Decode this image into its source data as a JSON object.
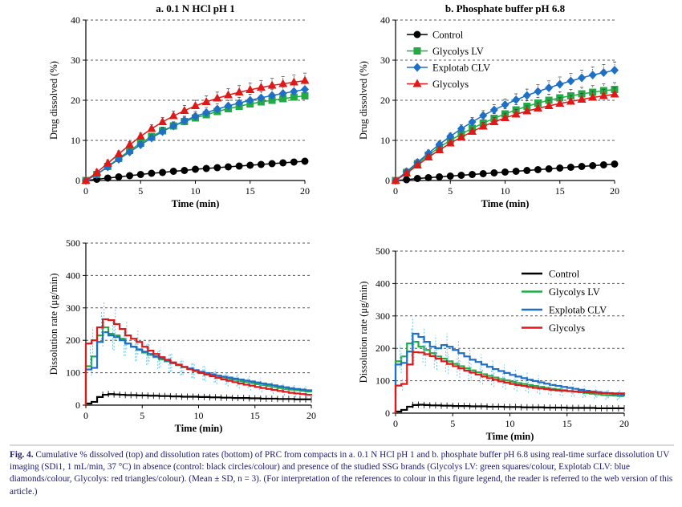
{
  "colors": {
    "control": "#000000",
    "glv": "#22aa44",
    "clv": "#1f6fc6",
    "gly": "#e01818",
    "err": "#6ec6e6"
  },
  "caption": {
    "label": "Fig. 4.",
    "text": "Cumulative % dissolved (top) and dissolution rates (bottom) of PRC from compacts in a. 0.1 N HCl pH 1 and b. phosphate buffer pH 6.8 using real-time surface dissolution UV imaging (SDi1, 1 mL/min, 37 °C) in absence (control: black circles/colour) and presence of the studied SSG brands (Glycolys LV: green squares/colour, Explotab CLV: blue diamonds/colour, Glycolys: red triangles/colour). (Mean ± SD, n = 3). (For interpretation of the references to colour in this figure legend, the reader is referred to the web version of this article.)"
  },
  "chart_data": [
    {
      "type": "line",
      "id": "a",
      "title": "a. 0.1 N HCl pH 1",
      "xlabel": "Time (min)",
      "ylabel": "Drug dissolved (%)",
      "xlim": [
        0,
        20
      ],
      "ylim": [
        0,
        40
      ],
      "xticks": [
        0,
        5,
        10,
        15,
        20
      ],
      "yticks": [
        0,
        10,
        20,
        30,
        40
      ],
      "x": [
        0,
        1,
        2,
        3,
        4,
        5,
        6,
        7,
        8,
        9,
        10,
        11,
        12,
        13,
        14,
        15,
        16,
        17,
        18,
        19,
        20
      ],
      "series": [
        {
          "name": "Control",
          "marker": "circle",
          "color": "#000000",
          "values": [
            0,
            0.3,
            0.6,
            0.9,
            1.2,
            1.5,
            1.8,
            2.0,
            2.3,
            2.5,
            2.8,
            3.0,
            3.2,
            3.4,
            3.6,
            3.8,
            4.0,
            4.2,
            4.4,
            4.6,
            4.8
          ]
        },
        {
          "name": "Glycolys LV",
          "marker": "square",
          "color": "#22aa44",
          "values": [
            0,
            1.5,
            3.5,
            5.5,
            7.5,
            9.3,
            11.0,
            12.4,
            13.6,
            14.7,
            15.6,
            16.4,
            17.2,
            17.9,
            18.5,
            19.1,
            19.6,
            20.0,
            20.4,
            20.8,
            21.1
          ]
        },
        {
          "name": "Explotab CLV",
          "marker": "diamond",
          "color": "#1f6fc6",
          "values": [
            0,
            1.5,
            3.4,
            5.3,
            7.1,
            8.9,
            10.6,
            12.2,
            13.6,
            14.9,
            16.0,
            16.9,
            17.8,
            18.6,
            19.3,
            20.0,
            20.6,
            21.2,
            21.7,
            22.2,
            22.7
          ]
        },
        {
          "name": "Glycolys",
          "marker": "triangle",
          "color": "#e01818",
          "values": [
            0,
            2.0,
            4.3,
            6.6,
            8.9,
            11.0,
            12.9,
            14.6,
            16.1,
            17.4,
            18.6,
            19.6,
            20.5,
            21.3,
            22.0,
            22.6,
            23.2,
            23.7,
            24.1,
            24.5,
            24.9
          ]
        }
      ]
    },
    {
      "type": "line",
      "id": "b",
      "title": "b. Phosphate buffer pH 6.8",
      "xlabel": "Time (min)",
      "ylabel": "Drug dissolved (%)",
      "xlim": [
        0,
        20
      ],
      "ylim": [
        0,
        40
      ],
      "xticks": [
        0,
        5,
        10,
        15,
        20
      ],
      "yticks": [
        0,
        10,
        20,
        30,
        40
      ],
      "legend": "top-left",
      "x": [
        0,
        1,
        2,
        3,
        4,
        5,
        6,
        7,
        8,
        9,
        10,
        11,
        12,
        13,
        14,
        15,
        16,
        17,
        18,
        19,
        20
      ],
      "series": [
        {
          "name": "Control",
          "marker": "circle",
          "color": "#000000",
          "values": [
            0,
            0.2,
            0.5,
            0.7,
            0.9,
            1.1,
            1.3,
            1.5,
            1.7,
            1.9,
            2.1,
            2.3,
            2.5,
            2.7,
            2.9,
            3.1,
            3.3,
            3.5,
            3.7,
            3.9,
            4.1
          ]
        },
        {
          "name": "Glycolys LV",
          "marker": "square",
          "color": "#22aa44",
          "values": [
            0,
            2.0,
            4.2,
            6.3,
            8.3,
            10.0,
            11.6,
            13.0,
            14.3,
            15.5,
            16.6,
            17.6,
            18.5,
            19.3,
            20.0,
            20.6,
            21.1,
            21.6,
            22.0,
            22.4,
            22.7
          ]
        },
        {
          "name": "Explotab CLV",
          "marker": "diamond",
          "color": "#1f6fc6",
          "values": [
            0,
            2.2,
            4.5,
            6.8,
            9.0,
            11.0,
            12.9,
            14.6,
            16.2,
            17.6,
            18.9,
            20.1,
            21.2,
            22.2,
            23.1,
            24.0,
            24.8,
            25.6,
            26.3,
            26.9,
            27.5
          ]
        },
        {
          "name": "Glycolys",
          "marker": "triangle",
          "color": "#e01818",
          "values": [
            0,
            1.8,
            3.8,
            5.8,
            7.6,
            9.3,
            10.8,
            12.2,
            13.5,
            14.6,
            15.6,
            16.5,
            17.3,
            18.0,
            18.6,
            19.2,
            19.7,
            20.2,
            20.7,
            21.1,
            21.5
          ]
        }
      ]
    },
    {
      "type": "line",
      "id": "c",
      "step": true,
      "xlabel": "Time (min)",
      "ylabel": "Dissolution rate (μg/min)",
      "xlim": [
        0,
        20
      ],
      "ylim": [
        0,
        500
      ],
      "xticks": [
        0,
        5,
        10,
        15,
        20
      ],
      "yticks": [
        0,
        100,
        200,
        300,
        400,
        500
      ],
      "x": [
        0,
        0.5,
        1,
        1.5,
        2,
        2.5,
        3,
        3.5,
        4,
        4.5,
        5,
        5.5,
        6,
        6.5,
        7,
        7.5,
        8,
        8.5,
        9,
        9.5,
        10,
        10.5,
        11,
        11.5,
        12,
        12.5,
        13,
        13.5,
        14,
        14.5,
        15,
        15.5,
        16,
        16.5,
        17,
        17.5,
        18,
        18.5,
        19,
        19.5,
        20
      ],
      "series": [
        {
          "name": "Control",
          "color": "#000000",
          "values": [
            5,
            10,
            25,
            32,
            34,
            33,
            32,
            31,
            31,
            30,
            30,
            29,
            29,
            28,
            28,
            27,
            27,
            26,
            26,
            26,
            25,
            25,
            24,
            24,
            23,
            23,
            22,
            22,
            22,
            21,
            21,
            20,
            20,
            20,
            19,
            19,
            19,
            18,
            18,
            18,
            18
          ]
        },
        {
          "name": "Glycolys LV",
          "color": "#22aa44",
          "values": [
            120,
            150,
            215,
            240,
            220,
            215,
            205,
            190,
            180,
            170,
            162,
            155,
            148,
            141,
            135,
            129,
            123,
            117,
            112,
            107,
            102,
            98,
            93,
            89,
            85,
            81,
            78,
            74,
            71,
            68,
            65,
            62,
            59,
            56,
            53,
            50,
            48,
            46,
            44,
            42,
            40
          ]
        },
        {
          "name": "Explotab CLV",
          "color": "#1f6fc6",
          "values": [
            110,
            115,
            195,
            225,
            215,
            210,
            200,
            190,
            180,
            172,
            165,
            158,
            151,
            144,
            137,
            130,
            124,
            118,
            113,
            108,
            103,
            99,
            95,
            91,
            88,
            85,
            82,
            79,
            76,
            73,
            70,
            67,
            64,
            61,
            58,
            55,
            52,
            50,
            48,
            46,
            44
          ]
        },
        {
          "name": "Glycolys",
          "color": "#e01818",
          "values": [
            190,
            200,
            240,
            265,
            262,
            250,
            235,
            215,
            205,
            195,
            180,
            168,
            158,
            148,
            140,
            132,
            125,
            118,
            111,
            105,
            99,
            94,
            89,
            84,
            79,
            75,
            71,
            67,
            63,
            60,
            56,
            53,
            50,
            47,
            44,
            41,
            38,
            36,
            34,
            32,
            30
          ]
        }
      ]
    },
    {
      "type": "line",
      "id": "d",
      "step": true,
      "xlabel": "Time (min)",
      "ylabel": "Dissolution rate (μg/min)",
      "xlim": [
        0,
        20
      ],
      "ylim": [
        0,
        500
      ],
      "xticks": [
        0,
        5,
        10,
        15,
        20
      ],
      "yticks": [
        0,
        100,
        200,
        300,
        400,
        500
      ],
      "legend": "right",
      "x": [
        0,
        0.5,
        1,
        1.5,
        2,
        2.5,
        3,
        3.5,
        4,
        4.5,
        5,
        5.5,
        6,
        6.5,
        7,
        7.5,
        8,
        8.5,
        9,
        9.5,
        10,
        10.5,
        11,
        11.5,
        12,
        12.5,
        13,
        13.5,
        14,
        14.5,
        15,
        15.5,
        16,
        16.5,
        17,
        17.5,
        18,
        18.5,
        19,
        19.5,
        20
      ],
      "series": [
        {
          "name": "Control",
          "color": "#000000",
          "values": [
            5,
            10,
            20,
            25,
            26,
            25,
            24,
            24,
            23,
            23,
            22,
            22,
            22,
            21,
            21,
            21,
            20,
            20,
            20,
            19,
            19,
            19,
            18,
            18,
            18,
            18,
            17,
            17,
            17,
            17,
            16,
            16,
            16,
            16,
            16,
            15,
            15,
            15,
            15,
            15,
            15
          ]
        },
        {
          "name": "Glycolys LV",
          "color": "#22aa44",
          "values": [
            160,
            175,
            215,
            220,
            205,
            195,
            185,
            175,
            168,
            160,
            152,
            145,
            138,
            132,
            126,
            120,
            115,
            110,
            105,
            101,
            97,
            93,
            90,
            87,
            84,
            81,
            78,
            75,
            73,
            71,
            68,
            66,
            64,
            62,
            60,
            58,
            56,
            55,
            54,
            53,
            52
          ]
        },
        {
          "name": "Explotab CLV",
          "color": "#1f6fc6",
          "values": [
            150,
            155,
            190,
            245,
            235,
            220,
            205,
            200,
            210,
            205,
            195,
            185,
            175,
            165,
            158,
            150,
            143,
            136,
            130,
            124,
            118,
            113,
            108,
            103,
            99,
            95,
            91,
            87,
            84,
            81,
            78,
            75,
            72,
            69,
            67,
            65,
            63,
            61,
            59,
            57,
            56
          ]
        },
        {
          "name": "Glycolys",
          "color": "#e01818",
          "values": [
            85,
            90,
            150,
            188,
            187,
            182,
            176,
            168,
            160,
            152,
            145,
            138,
            131,
            125,
            119,
            113,
            108,
            103,
            98,
            94,
            90,
            87,
            84,
            81,
            78,
            76,
            74,
            72,
            70,
            69,
            68,
            67,
            66,
            65,
            64,
            63,
            62,
            62,
            61,
            61,
            60
          ]
        }
      ]
    }
  ]
}
